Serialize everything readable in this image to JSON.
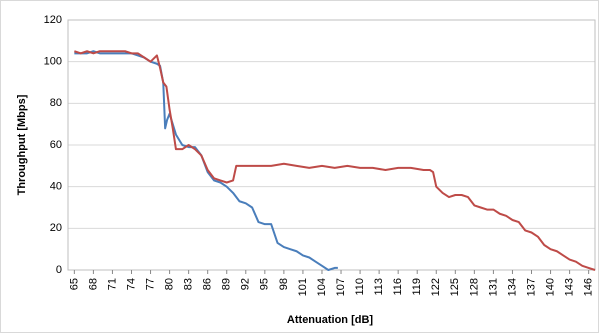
{
  "chart_data": {
    "type": "line",
    "xlabel": "Attenuation [dB]",
    "ylabel": "Throughput [Mbps]",
    "xlim": [
      64,
      147
    ],
    "xticks": [
      65,
      68,
      71,
      74,
      77,
      80,
      83,
      86,
      89,
      92,
      95,
      98,
      101,
      104,
      107,
      110,
      113,
      116,
      119,
      122,
      125,
      128,
      131,
      134,
      137,
      140,
      143,
      146
    ],
    "ylim": [
      0,
      120
    ],
    "yticks": [
      0,
      20,
      40,
      60,
      80,
      100,
      120
    ],
    "grid": true,
    "series": [
      {
        "color": "#4a7ebb",
        "x": [
          65,
          66,
          67,
          68,
          69,
          70,
          71,
          72,
          73,
          74,
          75,
          76,
          77,
          78,
          78.5,
          79,
          79.3,
          79.6,
          80,
          81,
          82,
          83,
          84,
          85,
          86,
          87,
          88,
          89,
          90,
          91,
          92,
          93,
          94,
          95,
          96,
          97,
          98,
          99,
          100,
          101,
          102,
          103,
          104,
          105,
          106,
          106.5
        ],
        "values": [
          104,
          104,
          104,
          105,
          104,
          104,
          104,
          104,
          104,
          104,
          103,
          102,
          100,
          99,
          98,
          90,
          68,
          72,
          75,
          65,
          60,
          59,
          59,
          55,
          47,
          43,
          42,
          40,
          37,
          33,
          32,
          30,
          23,
          22,
          22,
          13,
          11,
          10,
          9,
          7,
          6,
          4,
          2,
          0,
          1,
          1
        ]
      },
      {
        "color": "#be4b48",
        "x": [
          65,
          66,
          67,
          68,
          69,
          70,
          71,
          72,
          73,
          74,
          75,
          76,
          77,
          78,
          78.5,
          79,
          79.5,
          80,
          80.5,
          81,
          82,
          83,
          84,
          85,
          86,
          87,
          88,
          89,
          90,
          90.5,
          92,
          94,
          96,
          98,
          100,
          102,
          104,
          106,
          108,
          110,
          112,
          114,
          116,
          118,
          120,
          121,
          121.5,
          122,
          123,
          124,
          125,
          126,
          127,
          128,
          129,
          130,
          131,
          132,
          133,
          134,
          135,
          136,
          137,
          138,
          139,
          140,
          141,
          142,
          143,
          144,
          145,
          146,
          147
        ],
        "values": [
          105,
          104,
          105,
          104,
          105,
          105,
          105,
          105,
          105,
          104,
          104,
          102,
          100,
          103,
          97,
          90,
          88,
          77,
          68,
          58,
          58,
          60,
          58,
          55,
          48,
          44,
          43,
          42,
          43,
          50,
          50,
          50,
          50,
          51,
          50,
          49,
          50,
          49,
          50,
          49,
          49,
          48,
          49,
          49,
          48,
          48,
          47,
          40,
          37,
          35,
          36,
          36,
          35,
          31,
          30,
          29,
          29,
          27,
          26,
          24,
          23,
          19,
          18,
          16,
          12,
          10,
          9,
          7,
          5,
          4,
          2,
          1,
          0
        ]
      }
    ]
  }
}
